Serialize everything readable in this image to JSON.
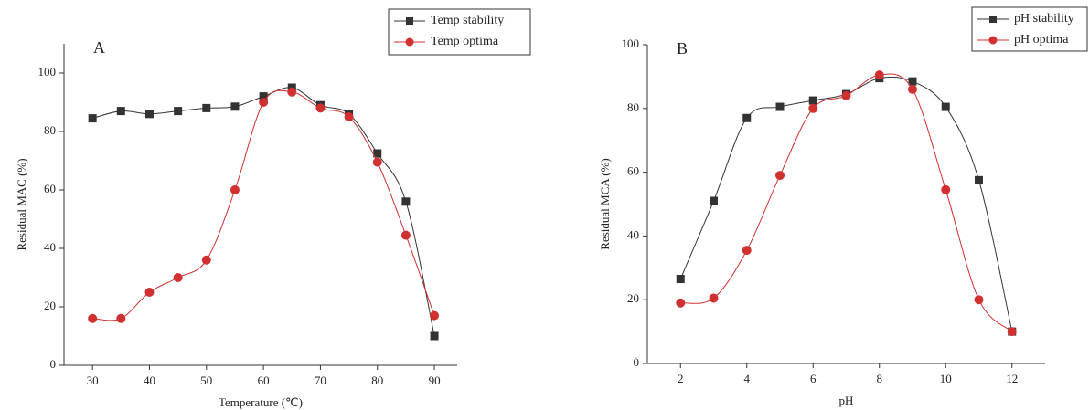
{
  "chart_data": [
    {
      "type": "line",
      "annotation": "A",
      "x_label": "Temperature (℃)",
      "y_label": "Residual MAC (%)",
      "x": [
        30,
        35,
        40,
        45,
        50,
        55,
        60,
        65,
        70,
        75,
        80,
        85,
        90
      ],
      "series": [
        {
          "name": "Temp stability",
          "color": "#333333",
          "marker": "square",
          "values": [
            84.5,
            87,
            86,
            87,
            88,
            88.5,
            92,
            95,
            89,
            86,
            72.5,
            56,
            10
          ]
        },
        {
          "name": "Temp optima",
          "color": "#d03030",
          "marker": "circle",
          "values": [
            16,
            16,
            25,
            30,
            36,
            60,
            90,
            93.5,
            88,
            85,
            69.5,
            44.5,
            17
          ]
        }
      ],
      "xlim": [
        25,
        94
      ],
      "ylim": [
        0,
        110
      ],
      "xticks": [
        30,
        40,
        50,
        60,
        70,
        80,
        90
      ],
      "yticks": [
        0,
        20,
        40,
        60,
        80,
        100
      ],
      "legend": "top right"
    },
    {
      "type": "line",
      "annotation": "B",
      "x_label": "pH",
      "y_label": "Residual MCA (%)",
      "x": [
        2,
        3,
        4,
        5,
        6,
        7,
        8,
        9,
        10,
        11,
        12
      ],
      "series": [
        {
          "name": "pH stability",
          "color": "#333333",
          "marker": "square",
          "values": [
            26.5,
            51,
            77,
            80.5,
            82.5,
            84.5,
            89.5,
            88.5,
            80.5,
            57.5,
            10
          ]
        },
        {
          "name": "pH optima",
          "color": "#d03030",
          "marker": "circle",
          "values": [
            19,
            20.5,
            35.5,
            59,
            80,
            84,
            90.5,
            86,
            54.5,
            20,
            10
          ]
        }
      ],
      "xlim": [
        1,
        13
      ],
      "ylim": [
        0,
        100
      ],
      "xticks": [
        2,
        4,
        6,
        8,
        10,
        12
      ],
      "yticks": [
        0,
        20,
        40,
        60,
        80,
        100
      ],
      "legend": "top right"
    }
  ]
}
